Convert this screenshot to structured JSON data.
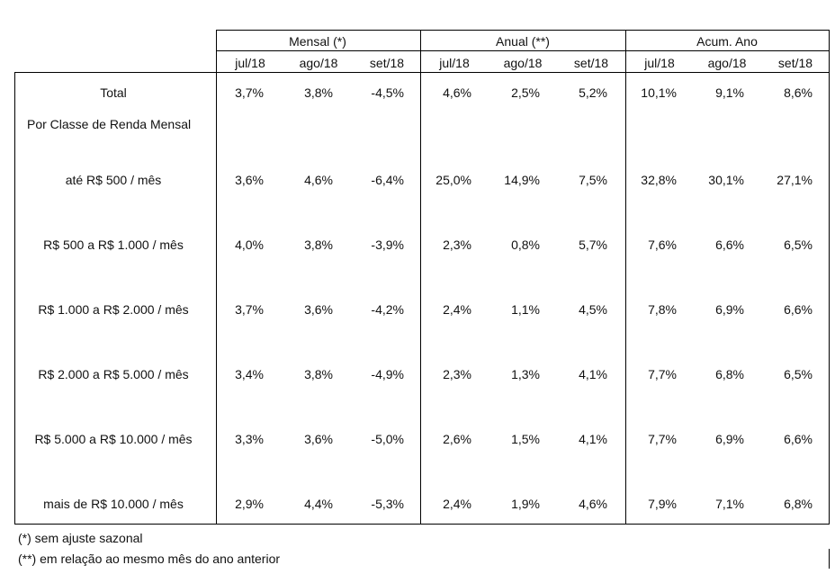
{
  "groups": [
    {
      "label": "Mensal (*)"
    },
    {
      "label": "Anual (**)"
    },
    {
      "label": "Acum. Ano"
    }
  ],
  "periods": [
    "jul/18",
    "ago/18",
    "set/18"
  ],
  "rows": [
    {
      "label": "Total",
      "values": [
        "3,7%",
        "3,8%",
        "-4,5%",
        "4,6%",
        "2,5%",
        "5,2%",
        "10,1%",
        "9,1%",
        "8,6%"
      ]
    },
    {
      "label": "Por Classe de Renda Mensal",
      "values": [
        "",
        "",
        "",
        "",
        "",
        "",
        "",
        "",
        ""
      ]
    },
    {
      "label": "até R$ 500 / mês",
      "values": [
        "3,6%",
        "4,6%",
        "-6,4%",
        "25,0%",
        "14,9%",
        "7,5%",
        "32,8%",
        "30,1%",
        "27,1%"
      ]
    },
    {
      "label": "R$ 500 a R$ 1.000 / mês",
      "values": [
        "4,0%",
        "3,8%",
        "-3,9%",
        "2,3%",
        "0,8%",
        "5,7%",
        "7,6%",
        "6,6%",
        "6,5%"
      ]
    },
    {
      "label": "R$ 1.000 a R$ 2.000 / mês",
      "values": [
        "3,7%",
        "3,6%",
        "-4,2%",
        "2,4%",
        "1,1%",
        "4,5%",
        "7,8%",
        "6,9%",
        "6,6%"
      ]
    },
    {
      "label": "R$ 2.000 a R$ 5.000 / mês",
      "values": [
        "3,4%",
        "3,8%",
        "-4,9%",
        "2,3%",
        "1,3%",
        "4,1%",
        "7,7%",
        "6,8%",
        "6,5%"
      ]
    },
    {
      "label": "R$ 5.000 a R$ 10.000 / mês",
      "values": [
        "3,3%",
        "3,6%",
        "-5,0%",
        "2,6%",
        "1,5%",
        "4,1%",
        "7,7%",
        "6,9%",
        "6,6%"
      ]
    },
    {
      "label": "mais de R$ 10.000 / mês",
      "values": [
        "2,9%",
        "4,4%",
        "-5,3%",
        "2,4%",
        "1,9%",
        "4,6%",
        "7,9%",
        "7,1%",
        "6,8%"
      ]
    }
  ],
  "footnotes": [
    "(*) sem ajuste sazonal",
    "(**) em relação ao mesmo mês do ano anterior"
  ]
}
